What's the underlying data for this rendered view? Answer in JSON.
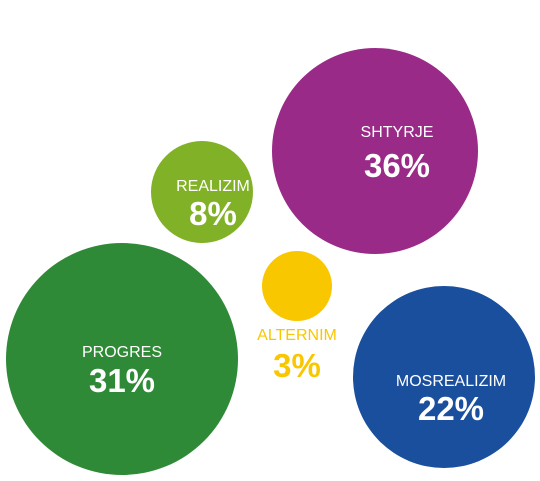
{
  "chart_data": {
    "type": "bubble",
    "title": "",
    "series": [
      {
        "name": "SHTYRJE",
        "label": "36%",
        "value": 36,
        "color": "#9a2a87",
        "label_color": "#ffffff"
      },
      {
        "name": "REALIZIM",
        "label": "8%",
        "value": 8,
        "color": "#80b126",
        "label_color": "#ffffff"
      },
      {
        "name": "PROGRES",
        "label": "31%",
        "value": 31,
        "color": "#2f8a37",
        "label_color": "#ffffff"
      },
      {
        "name": "ALTERNIM",
        "label": "3%",
        "value": 3,
        "color": "#f9c700",
        "label_color": "#f9c700"
      },
      {
        "name": "MOSREALIZIM",
        "label": "22%",
        "value": 22,
        "color": "#1a4f9e",
        "label_color": "#ffffff"
      }
    ]
  }
}
